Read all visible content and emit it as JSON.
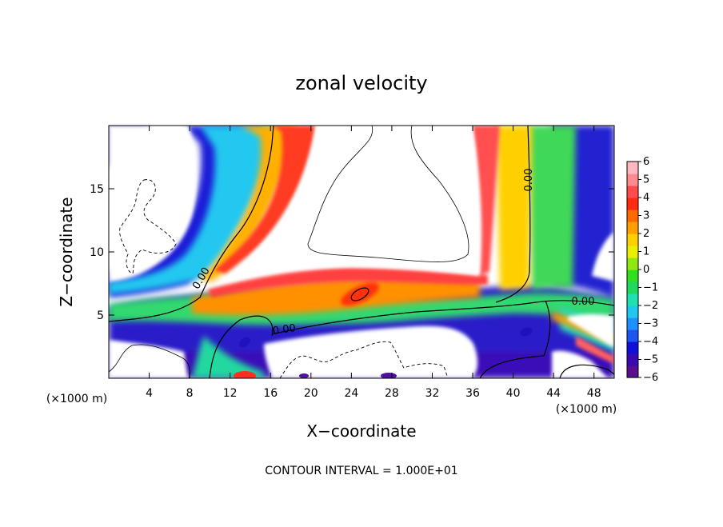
{
  "chart_data": {
    "type": "heatmap",
    "title": "zonal velocity",
    "xlabel": "X−coordinate",
    "ylabel": "Z−coordinate",
    "x_unit_label": "(×1000 m)",
    "footer": "CONTOUR INTERVAL = 1.000E+01",
    "xlim": [
      0,
      50
    ],
    "ylim": [
      0,
      20
    ],
    "x_ticks": [
      4,
      8,
      12,
      16,
      20,
      24,
      28,
      32,
      36,
      40,
      44,
      48
    ],
    "y_ticks": [
      5,
      10,
      15
    ],
    "colorbar": {
      "min": -6,
      "max": 6,
      "ticks": [
        "6",
        "5",
        "4",
        "3",
        "2",
        "1",
        "0",
        "−1",
        "−2",
        "−3",
        "−4",
        "−5",
        "−6"
      ],
      "colors": [
        "#5a0e8c",
        "#3a0ab0",
        "#1010d8",
        "#1f55f0",
        "#1e90ff",
        "#20c8f0",
        "#20e0b0",
        "#20d860",
        "#30e020",
        "#90e810",
        "#e8f000",
        "#ffd000",
        "#ffa000",
        "#ff6a00",
        "#ff2a10",
        "#ff4a50",
        "#ff8a90",
        "#ffb8c0"
      ]
    },
    "contour_labels": [
      "0.00",
      "0.00",
      "0.00",
      "0.00"
    ]
  }
}
